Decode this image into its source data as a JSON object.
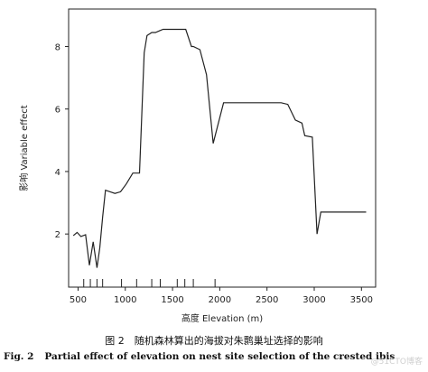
{
  "chart_data": {
    "type": "line",
    "xlabel": "高度 Elevation (m)",
    "ylabel": "影响 Variable effect",
    "xlim": [
      400,
      3650
    ],
    "ylim": [
      0.3,
      9.2
    ],
    "xticks": [
      500,
      1000,
      1500,
      2000,
      2500,
      3000,
      3500
    ],
    "yticks": [
      2,
      4,
      6,
      8
    ],
    "grid": false,
    "series": [
      {
        "x": [
          450,
          490,
          530,
          580,
          620,
          660,
          700,
          730,
          760,
          790,
          840,
          890,
          950,
          1010,
          1080,
          1150,
          1200,
          1230,
          1280,
          1320,
          1360,
          1400,
          1430,
          1500,
          1550,
          1640,
          1700,
          1720,
          1790,
          1860,
          1930,
          2040,
          2120,
          2170,
          2250,
          2400,
          2520,
          2650,
          2720,
          2800,
          2870,
          2900,
          2980,
          3030,
          3070,
          3130,
          3550
        ],
        "values": [
          1.95,
          2.05,
          1.92,
          1.98,
          1.0,
          1.75,
          0.92,
          1.55,
          2.55,
          3.4,
          3.35,
          3.3,
          3.35,
          3.6,
          3.95,
          3.95,
          7.8,
          8.35,
          8.45,
          8.45,
          8.5,
          8.55,
          8.55,
          8.55,
          8.55,
          8.55,
          8.0,
          8.0,
          7.9,
          7.1,
          4.9,
          6.2,
          6.2,
          6.2,
          6.2,
          6.2,
          6.2,
          6.2,
          6.15,
          5.65,
          5.55,
          5.15,
          5.1,
          2.0,
          2.7,
          2.7,
          2.7
        ]
      }
    ],
    "rug": [
      560,
      630,
      700,
      760,
      960,
      1120,
      1280,
      1370,
      1550,
      1630,
      1720,
      1950
    ]
  },
  "caption": {
    "cn": "图 2　随机森林算出的海拔对朱鹮巢址选择的影响",
    "en_number": "Fig. 2",
    "en_text": "Partial effect of elevation on nest site selection of the crested ibis"
  },
  "watermark": "@51CTO博客"
}
